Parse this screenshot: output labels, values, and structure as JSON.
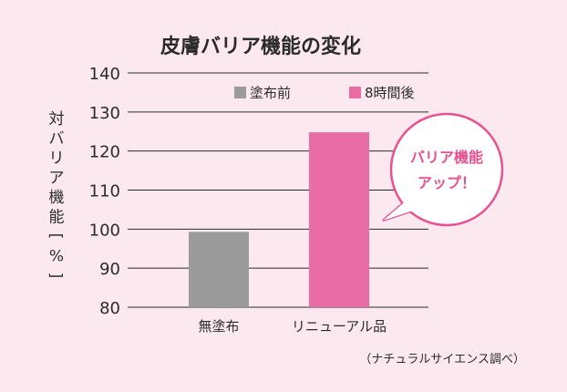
{
  "chart_data": {
    "type": "bar",
    "title": "皮膚バリア機能の変化",
    "ylabel": "対バリア機能[%]",
    "ylim": [
      80,
      140
    ],
    "yticks": [
      80,
      90,
      100,
      110,
      120,
      130,
      140
    ],
    "grid": true,
    "legend_position": "top-right",
    "categories": [
      "無塗布",
      "リニューアル品"
    ],
    "series": [
      {
        "name": "塗布前",
        "color": "#9b9b9b",
        "values": [
          99.3,
          null
        ]
      },
      {
        "name": "8時間後",
        "color": "#e96ca5",
        "values": [
          null,
          124.8
        ]
      }
    ],
    "annotations": {
      "callout_line1": "バリア機能",
      "callout_line2": "アップ！",
      "callout_color": "#e8518f"
    },
    "source_note": "（ナチュラルサイエンス調べ）"
  }
}
